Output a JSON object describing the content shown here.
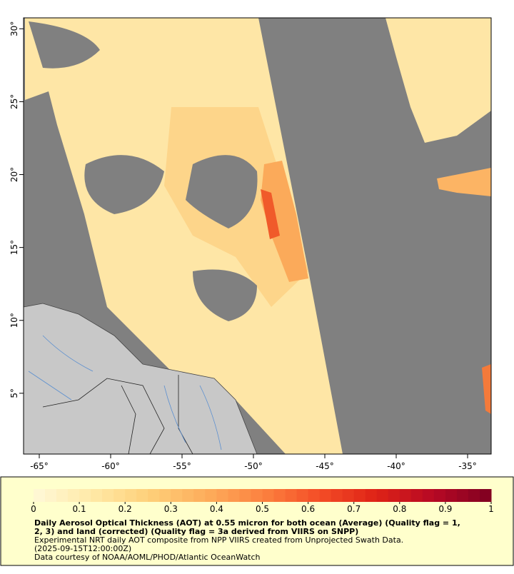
{
  "map": {
    "xlim": [
      -66.1,
      -33.35
    ],
    "ylim": [
      0.83,
      30.75
    ],
    "xticks": [
      {
        "value": -65,
        "label": "-65°"
      },
      {
        "value": -60,
        "label": "-60°"
      },
      {
        "value": -55,
        "label": "-55°"
      },
      {
        "value": -50,
        "label": "-50°"
      },
      {
        "value": -45,
        "label": "-45°"
      },
      {
        "value": -40,
        "label": "-40°"
      },
      {
        "value": -35,
        "label": "-35°"
      }
    ],
    "yticks": [
      {
        "value": 5,
        "label": "5°"
      },
      {
        "value": 10,
        "label": "10°"
      },
      {
        "value": 15,
        "label": "15°"
      },
      {
        "value": 20,
        "label": "20°"
      },
      {
        "value": 25,
        "label": "25°"
      },
      {
        "value": 30,
        "label": "30°"
      }
    ],
    "colorbar": {
      "lim": [
        0,
        1
      ],
      "ticks": [
        0,
        0.1,
        0.2,
        0.3,
        0.4,
        0.5,
        0.6,
        0.7,
        0.8,
        0.9,
        1
      ],
      "colormap": [
        "#fff8d8",
        "#ffe9a8",
        "#fed07a",
        "#fdae5c",
        "#fc8240",
        "#f44d26",
        "#de2217",
        "#b60924",
        "#7f0021"
      ]
    },
    "title_lines": [
      "Daily Aerosol Optical Thickness (AOT) at 0.55 micron for both ocean (Average) (Quality flag = 1,",
      "2, 3) and land (corrected) (Quality flag = 3a derived from VIIRS on SNPP)"
    ],
    "caption_lines": [
      "Experimental NRT daily AOT composite from NPP VIIRS created from Unprojected Swath Data.",
      "(2025-09-15T12:00:00Z)",
      "Data courtesy of NOAA/AOML/PHOD/Atlantic OceanWatch"
    ]
  }
}
